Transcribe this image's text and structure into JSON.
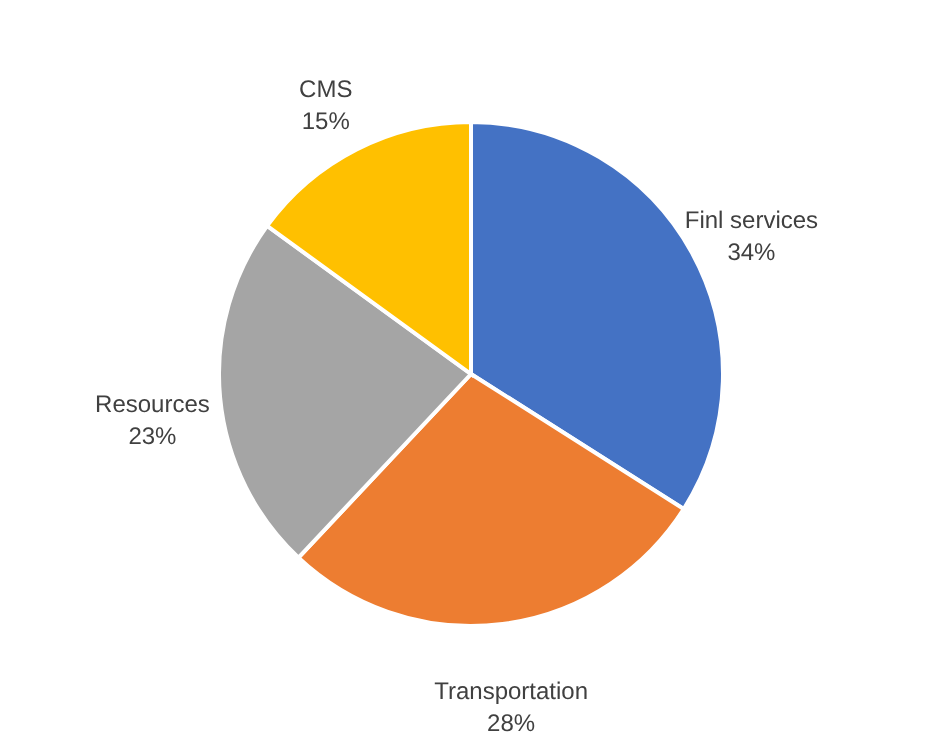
{
  "chart_data": {
    "type": "pie",
    "categories": [
      "Finl services",
      "Transportation",
      "Resources",
      "CMS"
    ],
    "values": [
      34,
      28,
      23,
      15
    ],
    "value_labels": [
      "34%",
      "28%",
      "23%",
      "15%"
    ],
    "colors": [
      "#4472c4",
      "#ed7d31",
      "#a5a5a5",
      "#ffc000"
    ],
    "legend": false
  }
}
